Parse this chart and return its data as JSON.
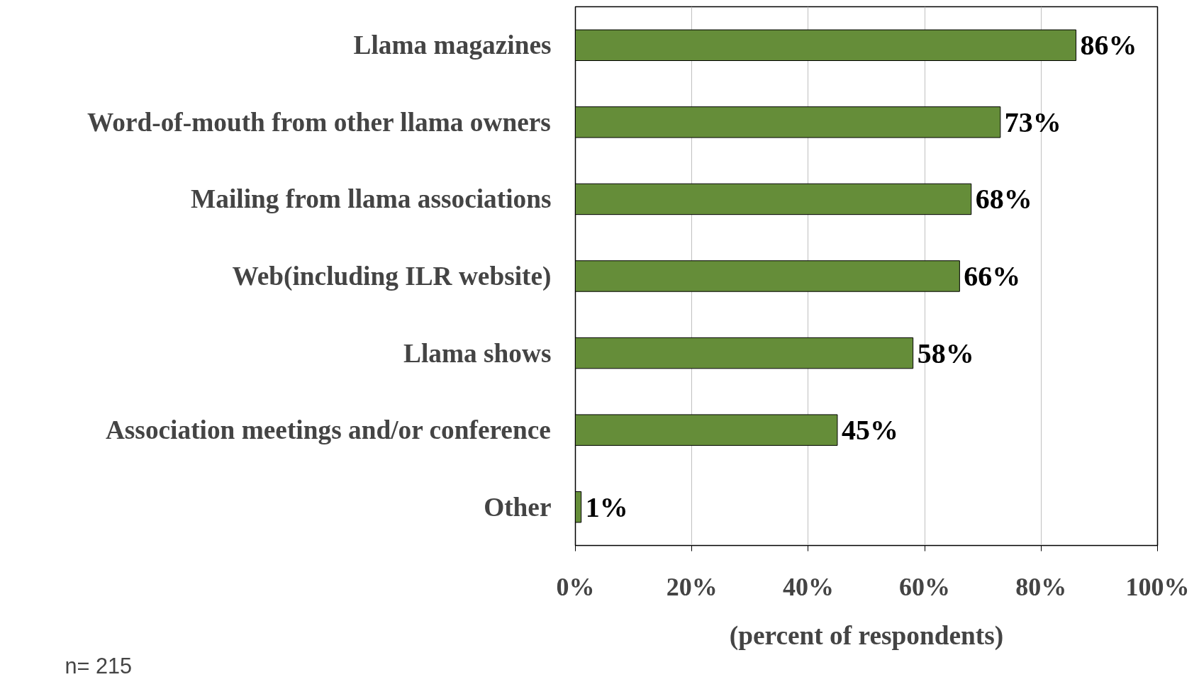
{
  "chart_data": {
    "type": "bar",
    "orientation": "horizontal",
    "categories": [
      "Llama magazines",
      "Word-of-mouth from other llama owners",
      "Mailing from llama associations",
      "Web(including ILR website)",
      "Llama shows",
      "Association meetings and/or conference",
      "Other"
    ],
    "values": [
      86,
      73,
      68,
      66,
      58,
      45,
      1
    ],
    "value_labels": [
      "86%",
      "73%",
      "68%",
      "66%",
      "58%",
      "45%",
      "1%"
    ],
    "color": "#658d39",
    "xlim": [
      0,
      100
    ],
    "xticks": [
      {
        "value": 0,
        "label": "0%"
      },
      {
        "value": 20,
        "label": "20%"
      },
      {
        "value": 40,
        "label": "40%"
      },
      {
        "value": 60,
        "label": "60%"
      },
      {
        "value": 80,
        "label": "80%"
      },
      {
        "value": 100,
        "label": "100%"
      }
    ],
    "xlabel": "(percent of respondents)",
    "grid": "x",
    "annotations": [
      "n= 215"
    ]
  }
}
